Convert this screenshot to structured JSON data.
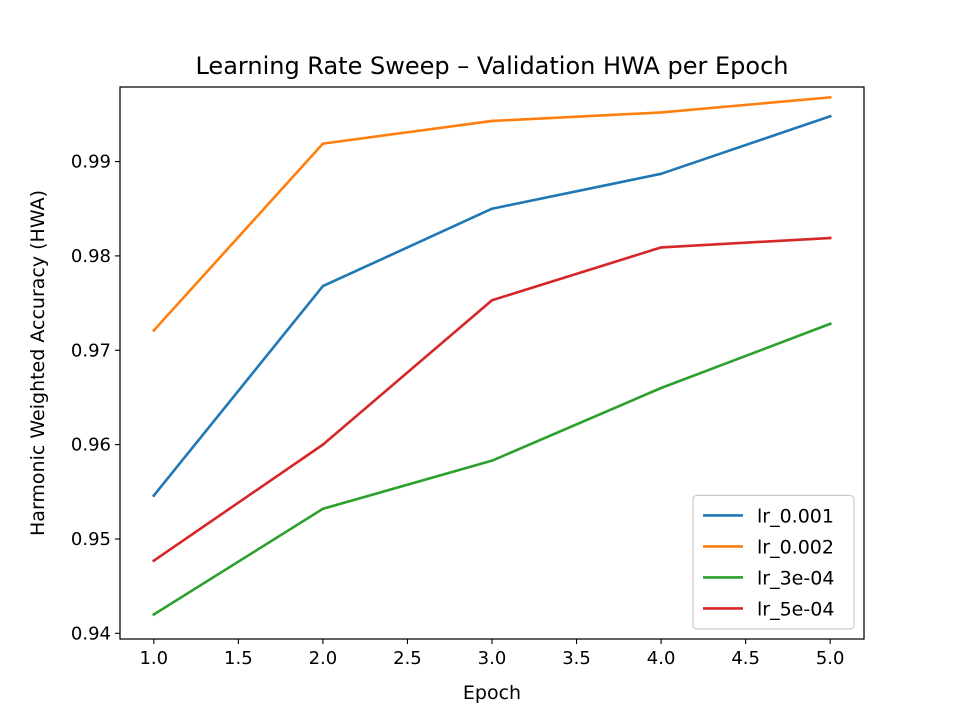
{
  "chart_data": {
    "type": "line",
    "title": "Learning Rate Sweep – Validation HWA per Epoch",
    "xlabel": "Epoch",
    "ylabel": "Harmonic Weighted Accuracy (HWA)",
    "xlim": [
      0.8,
      5.2
    ],
    "ylim": [
      0.9394,
      0.9979
    ],
    "x_ticks": [
      1.0,
      1.5,
      2.0,
      2.5,
      3.0,
      3.5,
      4.0,
      4.5,
      5.0
    ],
    "x_tick_labels": [
      "1.0",
      "1.5",
      "2.0",
      "2.5",
      "3.0",
      "3.5",
      "4.0",
      "4.5",
      "5.0"
    ],
    "y_ticks": [
      0.94,
      0.95,
      0.96,
      0.97,
      0.98,
      0.99
    ],
    "y_tick_labels": [
      "0.94",
      "0.95",
      "0.96",
      "0.97",
      "0.98",
      "0.99"
    ],
    "grid": false,
    "legend_position": "lower-right",
    "x": [
      1,
      2,
      3,
      4,
      5
    ],
    "series": [
      {
        "name": "lr_0.001",
        "color": "#1f77b4",
        "values": [
          0.9546,
          0.9768,
          0.985,
          0.9887,
          0.9948
        ]
      },
      {
        "name": "lr_0.002",
        "color": "#ff7f0e",
        "values": [
          0.9721,
          0.9919,
          0.9943,
          0.9952,
          0.9968
        ]
      },
      {
        "name": "lr_3e-04",
        "color": "#2ca02c",
        "values": [
          0.942,
          0.9532,
          0.9583,
          0.966,
          0.9728
        ]
      },
      {
        "name": "lr_5e-04",
        "color": "#d62728",
        "values": [
          0.9477,
          0.96,
          0.9753,
          0.9809,
          0.9819
        ]
      }
    ]
  }
}
